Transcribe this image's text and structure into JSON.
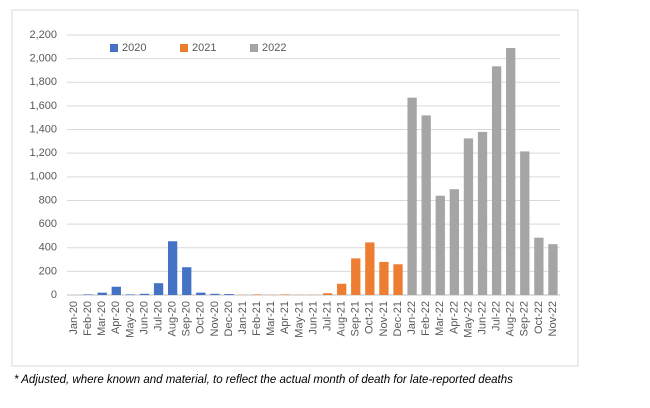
{
  "chart_data": {
    "type": "bar",
    "categories": [
      "Jan-20",
      "Feb-20",
      "Mar-20",
      "Apr-20",
      "May-20",
      "Jun-20",
      "Jul-20",
      "Aug-20",
      "Sep-20",
      "Oct-20",
      "Nov-20",
      "Dec-20",
      "Jan-21",
      "Feb-21",
      "Mar-21",
      "Apr-21",
      "May-21",
      "Jun-21",
      "Jul-21",
      "Aug-21",
      "Sep-21",
      "Oct-21",
      "Nov-21",
      "Dec-21",
      "Jan-22",
      "Feb-22",
      "Mar-22",
      "Apr-22",
      "May-22",
      "Jun-22",
      "Jul-22",
      "Aug-22",
      "Sep-22",
      "Oct-22",
      "Nov-22"
    ],
    "series": [
      {
        "name": "2020",
        "color": "#4472c4",
        "values": [
          0,
          5,
          20,
          70,
          5,
          10,
          100,
          455,
          235,
          20,
          10,
          8,
          null,
          null,
          null,
          null,
          null,
          null,
          null,
          null,
          null,
          null,
          null,
          null,
          null,
          null,
          null,
          null,
          null,
          null,
          null,
          null,
          null,
          null,
          null
        ]
      },
      {
        "name": "2021",
        "color": "#ed7d31",
        "values": [
          null,
          null,
          null,
          null,
          null,
          null,
          null,
          null,
          null,
          null,
          null,
          null,
          2,
          5,
          2,
          5,
          2,
          2,
          15,
          95,
          310,
          445,
          280,
          260,
          null,
          null,
          null,
          null,
          null,
          null,
          null,
          null,
          null,
          null,
          null
        ]
      },
      {
        "name": "2022",
        "color": "#a5a5a5",
        "values": [
          null,
          null,
          null,
          null,
          null,
          null,
          null,
          null,
          null,
          null,
          null,
          null,
          null,
          null,
          null,
          null,
          null,
          null,
          null,
          null,
          null,
          null,
          null,
          null,
          1670,
          1520,
          840,
          895,
          1325,
          1380,
          1935,
          2090,
          1215,
          485,
          430
        ]
      }
    ],
    "ylim": [
      0,
      2200
    ],
    "yticks": [
      0,
      200,
      400,
      600,
      800,
      {
        "value": 1000,
        "label": "1,000"
      },
      {
        "value": 1200,
        "label": "1,200"
      },
      {
        "value": 1400,
        "label": "1,400"
      },
      {
        "value": 1600,
        "label": "1,600"
      },
      {
        "value": 1800,
        "label": "1,800"
      },
      {
        "value": 2000,
        "label": "2,000"
      },
      {
        "value": 2200,
        "label": "2,200"
      }
    ],
    "grid": true,
    "legend": "top",
    "footnote": "* Adjusted, where known and material, to reflect the actual month of death for late-reported deaths"
  }
}
